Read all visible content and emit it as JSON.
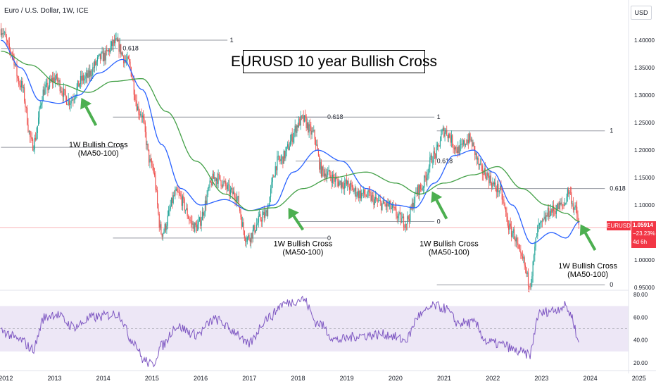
{
  "header": {
    "symbol_title": "Euro / U.S. Dollar, 1W, ICE",
    "currency": "USD"
  },
  "title_box": {
    "text": "EURUSD 10 year Bullish Cross"
  },
  "price_tag": {
    "symbol": "EURUSD",
    "price": "1.05914",
    "change": "−23.23%",
    "countdown": "4d 6h"
  },
  "colors": {
    "up_candle": "#26a69a",
    "down_candle": "#ef5350",
    "ma50": "#2962ff",
    "ma100": "#43a047",
    "rsi_line": "#7e57c2",
    "rsi_band": "#ede7f6",
    "fib_line": "#9598a1",
    "arrow": "#4caf50",
    "price_tag_bg": "#f23645"
  },
  "chart_data": [
    {
      "type": "line",
      "title": "EURUSD 10 year Bullish Cross",
      "x_ticks": [
        "2012",
        "2013",
        "2014",
        "2015",
        "2016",
        "2017",
        "2018",
        "2019",
        "2020",
        "2021",
        "2022",
        "2023",
        "2024",
        "2025"
      ],
      "y_ticks": [
        "1.40000",
        "1.35000",
        "1.30000",
        "1.25000",
        "1.20000",
        "1.15000",
        "1.10000",
        "1.05000",
        "1.00000",
        "0.95000"
      ],
      "ylim": [
        0.945,
        1.45
      ],
      "log_scale": false,
      "grid": false,
      "price_key_points": [
        {
          "x": 2011.9,
          "y": 1.42
        },
        {
          "x": 2012.1,
          "y": 1.38
        },
        {
          "x": 2012.3,
          "y": 1.32
        },
        {
          "x": 2012.55,
          "y": 1.21
        },
        {
          "x": 2012.8,
          "y": 1.31
        },
        {
          "x": 2013.0,
          "y": 1.33
        },
        {
          "x": 2013.3,
          "y": 1.29
        },
        {
          "x": 2013.6,
          "y": 1.33
        },
        {
          "x": 2014.0,
          "y": 1.37
        },
        {
          "x": 2014.25,
          "y": 1.395
        },
        {
          "x": 2014.5,
          "y": 1.36
        },
        {
          "x": 2014.75,
          "y": 1.27
        },
        {
          "x": 2015.0,
          "y": 1.17
        },
        {
          "x": 2015.2,
          "y": 1.05
        },
        {
          "x": 2015.5,
          "y": 1.12
        },
        {
          "x": 2015.9,
          "y": 1.06
        },
        {
          "x": 2016.3,
          "y": 1.15
        },
        {
          "x": 2016.7,
          "y": 1.12
        },
        {
          "x": 2016.95,
          "y": 1.04
        },
        {
          "x": 2017.3,
          "y": 1.08
        },
        {
          "x": 2017.6,
          "y": 1.18
        },
        {
          "x": 2018.1,
          "y": 1.255
        },
        {
          "x": 2018.3,
          "y": 1.23
        },
        {
          "x": 2018.5,
          "y": 1.16
        },
        {
          "x": 2018.9,
          "y": 1.14
        },
        {
          "x": 2019.3,
          "y": 1.12
        },
        {
          "x": 2019.8,
          "y": 1.1
        },
        {
          "x": 2020.2,
          "y": 1.07
        },
        {
          "x": 2020.5,
          "y": 1.13
        },
        {
          "x": 2020.8,
          "y": 1.19
        },
        {
          "x": 2021.0,
          "y": 1.235
        },
        {
          "x": 2021.3,
          "y": 1.2
        },
        {
          "x": 2021.5,
          "y": 1.22
        },
        {
          "x": 2021.8,
          "y": 1.16
        },
        {
          "x": 2022.1,
          "y": 1.13
        },
        {
          "x": 2022.4,
          "y": 1.05
        },
        {
          "x": 2022.6,
          "y": 1.0
        },
        {
          "x": 2022.75,
          "y": 0.96
        },
        {
          "x": 2022.95,
          "y": 1.06
        },
        {
          "x": 2023.2,
          "y": 1.09
        },
        {
          "x": 2023.45,
          "y": 1.1
        },
        {
          "x": 2023.55,
          "y": 1.125
        },
        {
          "x": 2023.7,
          "y": 1.09
        },
        {
          "x": 2023.78,
          "y": 1.059
        }
      ],
      "ma_series": [
        {
          "key": "ma50",
          "points": [
            {
              "x": 2011.9,
              "y": 1.4
            },
            {
              "x": 2012.3,
              "y": 1.35
            },
            {
              "x": 2012.7,
              "y": 1.29
            },
            {
              "x": 2013.1,
              "y": 1.285
            },
            {
              "x": 2013.5,
              "y": 1.3
            },
            {
              "x": 2013.9,
              "y": 1.34
            },
            {
              "x": 2014.4,
              "y": 1.365
            },
            {
              "x": 2014.8,
              "y": 1.31
            },
            {
              "x": 2015.2,
              "y": 1.21
            },
            {
              "x": 2015.6,
              "y": 1.13
            },
            {
              "x": 2016.0,
              "y": 1.1
            },
            {
              "x": 2016.5,
              "y": 1.11
            },
            {
              "x": 2017.0,
              "y": 1.09
            },
            {
              "x": 2017.5,
              "y": 1.1
            },
            {
              "x": 2017.9,
              "y": 1.16
            },
            {
              "x": 2018.4,
              "y": 1.2
            },
            {
              "x": 2018.9,
              "y": 1.18
            },
            {
              "x": 2019.4,
              "y": 1.13
            },
            {
              "x": 2020.0,
              "y": 1.1
            },
            {
              "x": 2020.4,
              "y": 1.095
            },
            {
              "x": 2020.8,
              "y": 1.14
            },
            {
              "x": 2021.2,
              "y": 1.19
            },
            {
              "x": 2021.6,
              "y": 1.2
            },
            {
              "x": 2022.0,
              "y": 1.16
            },
            {
              "x": 2022.4,
              "y": 1.1
            },
            {
              "x": 2022.8,
              "y": 1.03
            },
            {
              "x": 2023.2,
              "y": 1.05
            },
            {
              "x": 2023.5,
              "y": 1.04
            },
            {
              "x": 2023.78,
              "y": 1.07
            }
          ]
        },
        {
          "key": "ma100",
          "points": [
            {
              "x": 2011.9,
              "y": 1.38
            },
            {
              "x": 2012.5,
              "y": 1.355
            },
            {
              "x": 2013.1,
              "y": 1.32
            },
            {
              "x": 2013.7,
              "y": 1.305
            },
            {
              "x": 2014.2,
              "y": 1.325
            },
            {
              "x": 2014.8,
              "y": 1.33
            },
            {
              "x": 2015.3,
              "y": 1.27
            },
            {
              "x": 2015.9,
              "y": 1.18
            },
            {
              "x": 2016.5,
              "y": 1.12
            },
            {
              "x": 2017.0,
              "y": 1.09
            },
            {
              "x": 2017.5,
              "y": 1.095
            },
            {
              "x": 2018.1,
              "y": 1.13
            },
            {
              "x": 2018.7,
              "y": 1.15
            },
            {
              "x": 2019.4,
              "y": 1.16
            },
            {
              "x": 2020.0,
              "y": 1.14
            },
            {
              "x": 2020.5,
              "y": 1.12
            },
            {
              "x": 2021.0,
              "y": 1.14
            },
            {
              "x": 2021.6,
              "y": 1.155
            },
            {
              "x": 2022.1,
              "y": 1.17
            },
            {
              "x": 2022.6,
              "y": 1.13
            },
            {
              "x": 2023.1,
              "y": 1.1
            },
            {
              "x": 2023.5,
              "y": 1.085
            },
            {
              "x": 2023.78,
              "y": 1.07
            }
          ]
        }
      ],
      "fib_levels": [
        {
          "label": "1",
          "y": 1.4,
          "x_from": 2014.15,
          "x_to": 2016.55,
          "label_x": 2016.6
        },
        {
          "label": "0.618",
          "y": 1.385,
          "x_from": 2011.9,
          "x_to": 2014.3,
          "label_x": 2014.4
        },
        {
          "label": "0",
          "y": 1.205,
          "x_from": 2011.9,
          "x_to": 2014.3,
          "label_x": 2014.35
        },
        {
          "label": "0.618",
          "y": 1.26,
          "x_from": 2014.2,
          "x_to": 2018.6,
          "label_x": 2018.6
        },
        {
          "label": "0",
          "y": 1.04,
          "x_from": 2014.2,
          "x_to": 2018.6,
          "label_x": 2018.6
        },
        {
          "label": "1",
          "y": 1.26,
          "x_from": 2017.95,
          "x_to": 2020.8,
          "label_x": 2020.85
        },
        {
          "label": "0.618",
          "y": 1.18,
          "x_from": 2017.95,
          "x_to": 2020.8,
          "label_x": 2020.85
        },
        {
          "label": "0",
          "y": 1.07,
          "x_from": 2017.95,
          "x_to": 2020.8,
          "label_x": 2020.85
        },
        {
          "label": "1",
          "y": 1.235,
          "x_from": 2020.85,
          "x_to": 2024.3,
          "label_x": 2024.4
        },
        {
          "label": "0.618",
          "y": 1.13,
          "x_from": 2020.85,
          "x_to": 2024.3,
          "label_x": 2024.4
        },
        {
          "label": "0",
          "y": 0.955,
          "x_from": 2020.85,
          "x_to": 2024.3,
          "label_x": 2024.4
        }
      ],
      "annotations": [
        {
          "lines": [
            "1W Bullish Cross",
            "(MA50-100)"
          ],
          "x": 2013.9,
          "y": 1.205,
          "arrow_from": {
            "x": 2013.85,
            "y": 1.245
          },
          "arrow_to": {
            "x": 2013.55,
            "y": 1.295
          }
        },
        {
          "lines": [
            "1W Bullish Cross",
            "(MA50-100)"
          ],
          "x": 2018.1,
          "y": 1.025,
          "arrow_from": {
            "x": 2018.1,
            "y": 1.055
          },
          "arrow_to": {
            "x": 2017.8,
            "y": 1.095
          }
        },
        {
          "lines": [
            "1W Bullish Cross",
            "(MA50-100)"
          ],
          "x": 2021.1,
          "y": 1.025,
          "arrow_from": {
            "x": 2021.05,
            "y": 1.075
          },
          "arrow_to": {
            "x": 2020.75,
            "y": 1.125
          }
        },
        {
          "lines": [
            "1W Bullish Cross",
            "(MA50-100)"
          ],
          "x": 2023.95,
          "y": 0.985,
          "arrow_from": {
            "x": 2024.1,
            "y": 1.018
          },
          "arrow_to": {
            "x": 2023.8,
            "y": 1.065
          }
        }
      ],
      "last_price": 1.05914
    },
    {
      "type": "line",
      "title": "",
      "y_ticks": [
        "80.00",
        "60.00",
        "40.00",
        "20.00"
      ],
      "ylim": [
        15,
        82
      ],
      "overbought": 70,
      "oversold": 30,
      "midline": 50,
      "rsi_key_points": [
        {
          "x": 2011.9,
          "y": 48
        },
        {
          "x": 2012.3,
          "y": 40
        },
        {
          "x": 2012.55,
          "y": 32
        },
        {
          "x": 2012.8,
          "y": 60
        },
        {
          "x": 2013.0,
          "y": 63
        },
        {
          "x": 2013.4,
          "y": 52
        },
        {
          "x": 2013.8,
          "y": 60
        },
        {
          "x": 2014.3,
          "y": 63
        },
        {
          "x": 2014.6,
          "y": 40
        },
        {
          "x": 2014.85,
          "y": 22
        },
        {
          "x": 2015.0,
          "y": 18
        },
        {
          "x": 2015.2,
          "y": 35
        },
        {
          "x": 2015.5,
          "y": 52
        },
        {
          "x": 2015.9,
          "y": 45
        },
        {
          "x": 2016.3,
          "y": 58
        },
        {
          "x": 2016.7,
          "y": 48
        },
        {
          "x": 2016.95,
          "y": 36
        },
        {
          "x": 2017.4,
          "y": 60
        },
        {
          "x": 2017.7,
          "y": 72
        },
        {
          "x": 2018.1,
          "y": 76
        },
        {
          "x": 2018.4,
          "y": 55
        },
        {
          "x": 2018.8,
          "y": 40
        },
        {
          "x": 2019.3,
          "y": 44
        },
        {
          "x": 2019.8,
          "y": 45
        },
        {
          "x": 2020.2,
          "y": 40
        },
        {
          "x": 2020.5,
          "y": 62
        },
        {
          "x": 2020.8,
          "y": 70
        },
        {
          "x": 2021.0,
          "y": 68
        },
        {
          "x": 2021.3,
          "y": 55
        },
        {
          "x": 2021.6,
          "y": 55
        },
        {
          "x": 2021.9,
          "y": 38
        },
        {
          "x": 2022.2,
          "y": 36
        },
        {
          "x": 2022.5,
          "y": 30
        },
        {
          "x": 2022.75,
          "y": 27
        },
        {
          "x": 2022.95,
          "y": 63
        },
        {
          "x": 2023.2,
          "y": 66
        },
        {
          "x": 2023.5,
          "y": 70
        },
        {
          "x": 2023.6,
          "y": 62
        },
        {
          "x": 2023.78,
          "y": 37
        }
      ]
    }
  ]
}
